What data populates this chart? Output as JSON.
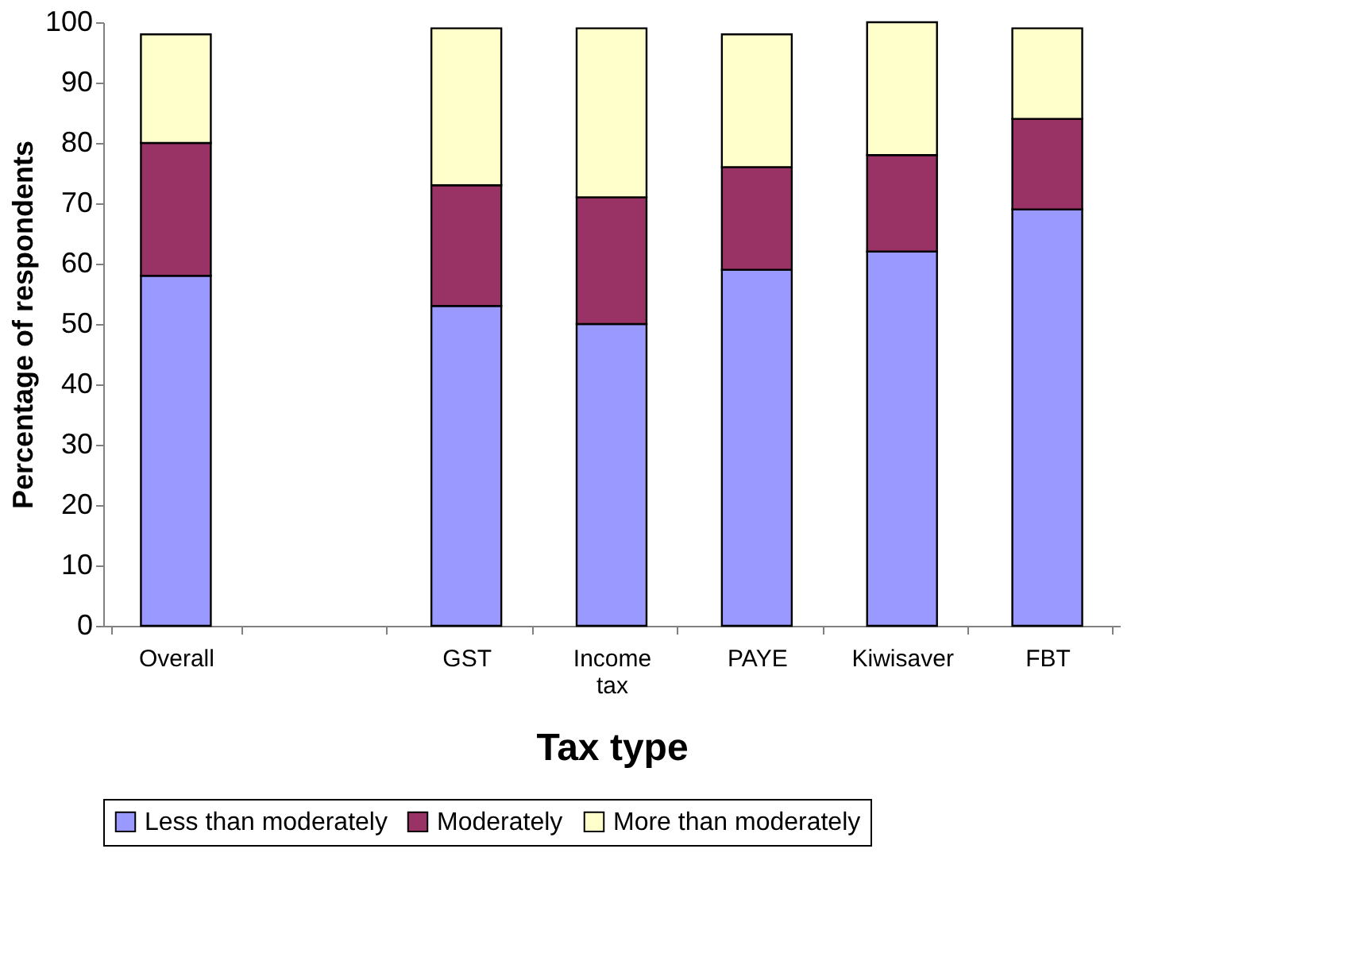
{
  "chart_data": {
    "type": "bar",
    "stacked": true,
    "xlabel": "Tax type",
    "ylabel": "Percentage of respondents",
    "categories": [
      "Overall",
      null,
      "GST",
      "Income tax",
      "PAYE",
      "Kiwisaver",
      "FBT"
    ],
    "series": [
      {
        "name": "Less than moderately",
        "color": "#9999ff",
        "values": [
          58,
          null,
          53,
          50,
          59,
          62,
          69
        ]
      },
      {
        "name": "Moderately",
        "color": "#993366",
        "values": [
          22,
          null,
          20,
          21,
          17,
          16,
          15
        ]
      },
      {
        "name": "More than moderately",
        "color": "#ffffcc",
        "values": [
          18,
          null,
          26,
          28,
          22,
          22,
          15
        ]
      }
    ],
    "ylim": [
      0,
      100
    ],
    "yticks": [
      0,
      10,
      20,
      30,
      40,
      50,
      60,
      70,
      80,
      90,
      100
    ],
    "grid": false,
    "legend": "bottom"
  }
}
